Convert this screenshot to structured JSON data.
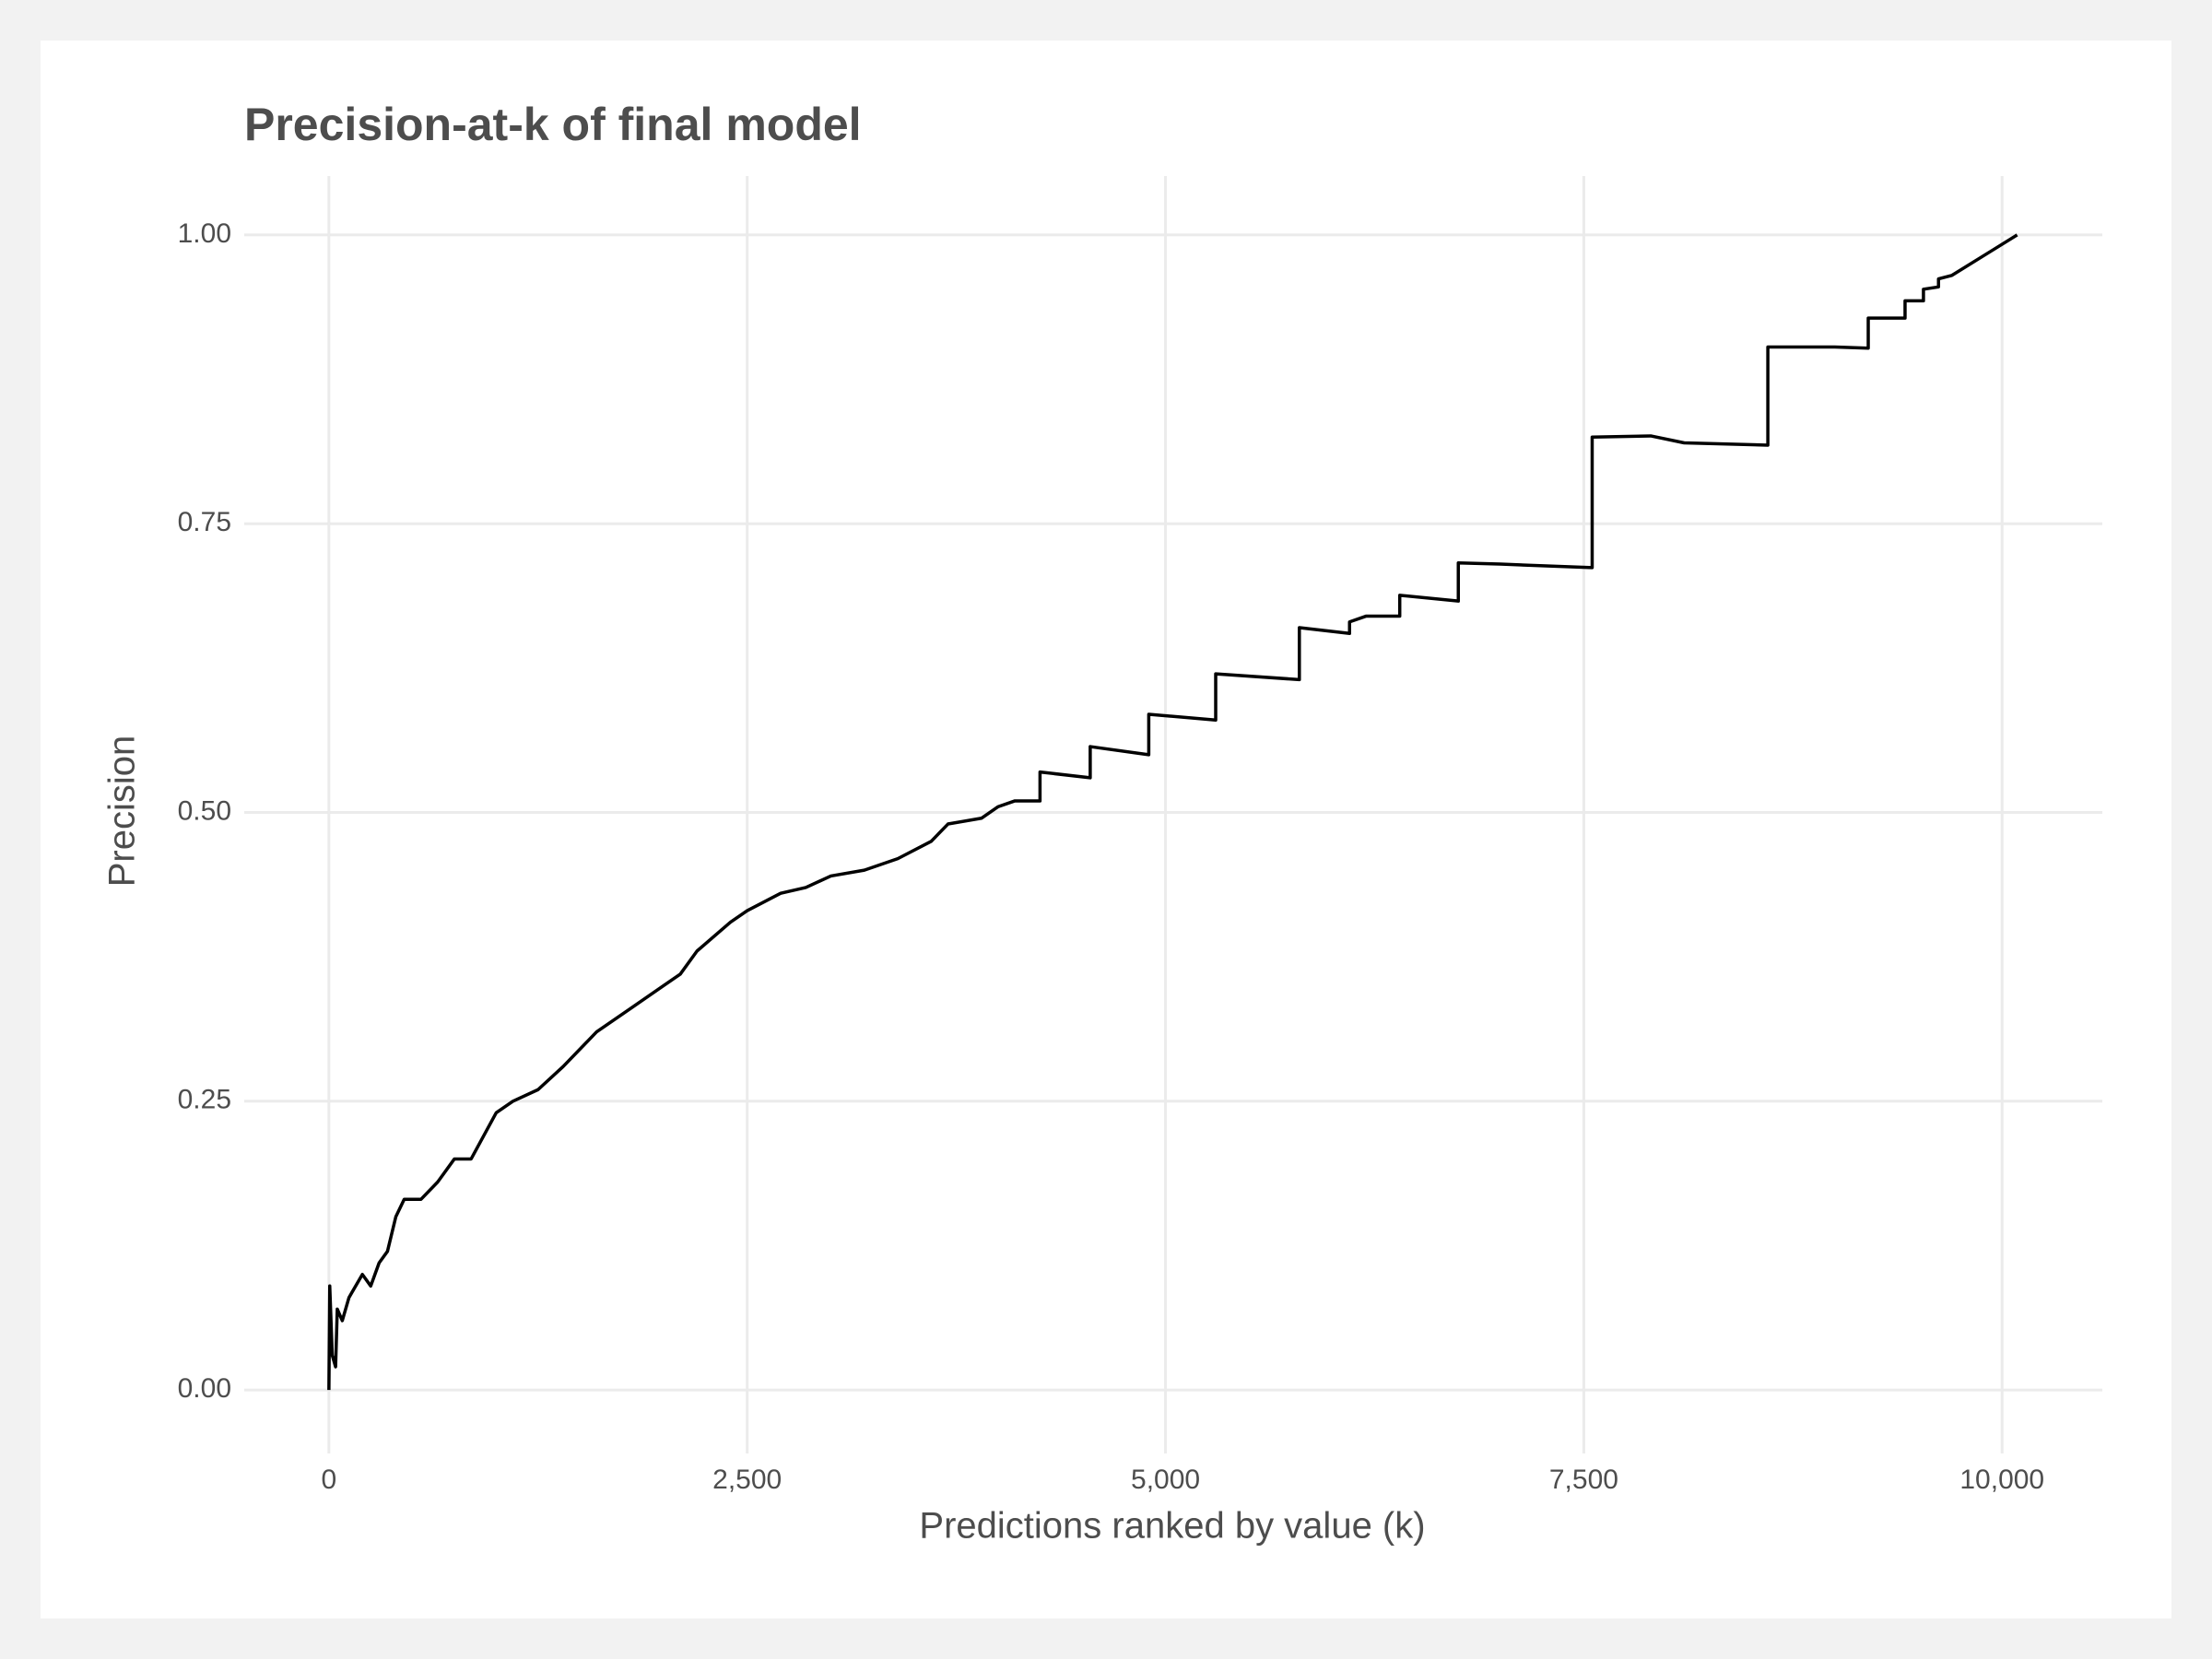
{
  "chart_data": {
    "type": "line",
    "title": "Precision-at-k of final model",
    "x_label": "Predictions ranked by value (k)",
    "y_label": "Precision",
    "xlim": [
      -506,
      10599
    ],
    "ylim": [
      -0.055,
      1.051
    ],
    "xticks": [
      0,
      {
        "value": 2500,
        "label": "2,500"
      },
      {
        "value": 5000,
        "label": "5,000"
      },
      {
        "value": 7500,
        "label": "7,500"
      },
      {
        "value": 10000,
        "label": "10,000"
      }
    ],
    "yticks": [
      {
        "value": 0,
        "label": "0.00"
      },
      {
        "value": 0.25,
        "label": "0.25"
      },
      {
        "value": 0.5,
        "label": "0.50"
      },
      {
        "value": 0.75,
        "label": "0.75"
      },
      {
        "value": 1,
        "label": "1.00"
      }
    ],
    "grid": true,
    "series": [
      {
        "color": "#000000",
        "x": [
          0,
          5,
          20,
          40,
          50,
          80,
          120,
          200,
          250,
          300,
          350,
          400,
          450,
          550,
          650,
          750,
          850,
          1000,
          1100,
          1250,
          1400,
          1600,
          1800,
          2000,
          2100,
          2200,
          2400,
          2500,
          2700,
          2850,
          3000,
          3200,
          3400,
          3600,
          3700,
          3900,
          4000,
          4100,
          4250,
          4250,
          4550,
          4550,
          4900,
          4900,
          5300,
          5300,
          5800,
          5800,
          6100,
          6100,
          6200,
          6400,
          6400,
          6750,
          6750,
          7000,
          7550,
          7550,
          7900,
          8100,
          8600,
          8600,
          9000,
          9200,
          9200,
          9420,
          9420,
          9530,
          9530,
          9620,
          9620,
          9700,
          10090
        ],
        "values": [
          0,
          0.09,
          0.03,
          0.02,
          0.07,
          0.06,
          0.08,
          0.1,
          0.09,
          0.11,
          0.12,
          0.15,
          0.165,
          0.165,
          0.18,
          0.2,
          0.2,
          0.24,
          0.25,
          0.26,
          0.28,
          0.31,
          0.33,
          0.35,
          0.36,
          0.38,
          0.405,
          0.415,
          0.43,
          0.435,
          0.445,
          0.45,
          0.46,
          0.475,
          0.49,
          0.495,
          0.505,
          0.51,
          0.51,
          0.535,
          0.53,
          0.557,
          0.55,
          0.585,
          0.58,
          0.62,
          0.615,
          0.66,
          0.655,
          0.665,
          0.67,
          0.67,
          0.688,
          0.683,
          0.716,
          0.715,
          0.712,
          0.825,
          0.826,
          0.82,
          0.818,
          0.903,
          0.903,
          0.902,
          0.928,
          0.928,
          0.943,
          0.943,
          0.953,
          0.955,
          0.962,
          0.965,
          1.0
        ]
      }
    ]
  }
}
